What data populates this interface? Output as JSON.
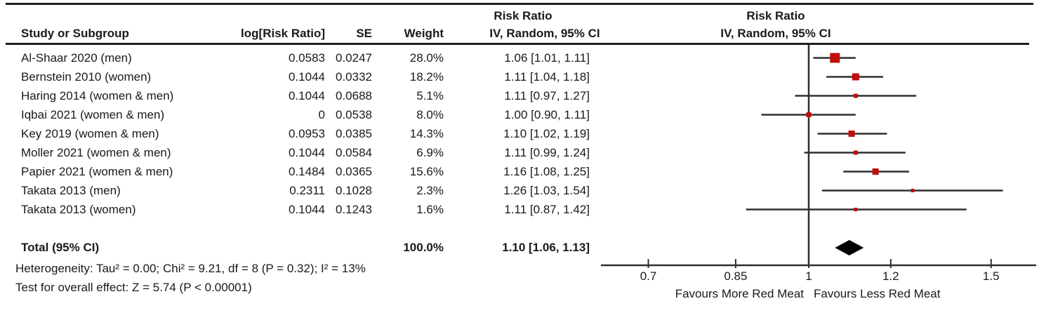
{
  "header": {
    "col_study": "Study or Subgroup",
    "col_logrr": "log[Risk Ratio]",
    "col_se": "SE",
    "col_weight": "Weight",
    "col_ci_line1": "Risk Ratio",
    "col_ci_line2": "IV, Random, 95% CI",
    "plot_line1": "Risk Ratio",
    "plot_line2": "IV, Random, 95% CI"
  },
  "chart_data": {
    "type": "forest",
    "effect_measure": "Risk Ratio",
    "model": "IV, Random, 95% CI",
    "studies": [
      {
        "label": "Al-Shaar 2020 (men)",
        "log_rr": "0.0583",
        "se": "0.0247",
        "weight": "28.0%",
        "weight_pct": 28.0,
        "rr": 1.06,
        "ci_low": 1.01,
        "ci_high": 1.11,
        "ci_text": "1.06 [1.01, 1.11]"
      },
      {
        "label": "Bernstein 2010 (women)",
        "log_rr": "0.1044",
        "se": "0.0332",
        "weight": "18.2%",
        "weight_pct": 18.2,
        "rr": 1.11,
        "ci_low": 1.04,
        "ci_high": 1.18,
        "ci_text": "1.11 [1.04, 1.18]"
      },
      {
        "label": "Haring 2014 (women & men)",
        "log_rr": "0.1044",
        "se": "0.0688",
        "weight": "5.1%",
        "weight_pct": 5.1,
        "rr": 1.11,
        "ci_low": 0.97,
        "ci_high": 1.27,
        "ci_text": "1.11 [0.97, 1.27]"
      },
      {
        "label": "Iqbai 2021 (women & men)",
        "log_rr": "0",
        "se": "0.0538",
        "weight": "8.0%",
        "weight_pct": 8.0,
        "rr": 1.0,
        "ci_low": 0.9,
        "ci_high": 1.11,
        "ci_text": "1.00 [0.90, 1.11]"
      },
      {
        "label": "Key 2019 (women & men)",
        "log_rr": "0.0953",
        "se": "0.0385",
        "weight": "14.3%",
        "weight_pct": 14.3,
        "rr": 1.1,
        "ci_low": 1.02,
        "ci_high": 1.19,
        "ci_text": "1.10 [1.02, 1.19]"
      },
      {
        "label": "Moller 2021 (women & men)",
        "log_rr": "0.1044",
        "se": "0.0584",
        "weight": "6.9%",
        "weight_pct": 6.9,
        "rr": 1.11,
        "ci_low": 0.99,
        "ci_high": 1.24,
        "ci_text": "1.11 [0.99, 1.24]"
      },
      {
        "label": "Papier 2021 (women & men)",
        "log_rr": "0.1484",
        "se": "0.0365",
        "weight": "15.6%",
        "weight_pct": 15.6,
        "rr": 1.16,
        "ci_low": 1.08,
        "ci_high": 1.25,
        "ci_text": "1.16 [1.08, 1.25]"
      },
      {
        "label": "Takata 2013 (men)",
        "log_rr": "0.2311",
        "se": "0.1028",
        "weight": "2.3%",
        "weight_pct": 2.3,
        "rr": 1.26,
        "ci_low": 1.03,
        "ci_high": 1.54,
        "ci_text": "1.26 [1.03, 1.54]"
      },
      {
        "label": "Takata 2013 (women)",
        "log_rr": "0.1044",
        "se": "0.1243",
        "weight": "1.6%",
        "weight_pct": 1.6,
        "rr": 1.11,
        "ci_low": 0.87,
        "ci_high": 1.42,
        "ci_text": "1.11 [0.87, 1.42]"
      }
    ],
    "total": {
      "label": "Total (95% CI)",
      "weight": "100.0%",
      "rr": 1.1,
      "ci_low": 1.06,
      "ci_high": 1.13,
      "ci_text": "1.10 [1.06, 1.13]"
    },
    "axis": {
      "scale": "log",
      "null_line": 1,
      "ticks": [
        0.7,
        0.85,
        1,
        1.2,
        1.5
      ],
      "tick_labels": [
        "0.7",
        "0.85",
        "1",
        "1.2",
        "1.5"
      ]
    },
    "footer": {
      "heterogeneity": "Heterogeneity: Tau² = 0.00; Chi² = 9.21, df = 8 (P = 0.32); I² = 13%",
      "overall_effect": "Test for overall effect: Z = 5.74 (P < 0.00001)",
      "favours_left": "Favours More Red Meat",
      "favours_right": "Favours Less Red Meat"
    },
    "colors": {
      "marker": "#c00e0e",
      "diamond": "#000000",
      "line": "#2f2f2f",
      "text": "#1a1a1a"
    }
  }
}
